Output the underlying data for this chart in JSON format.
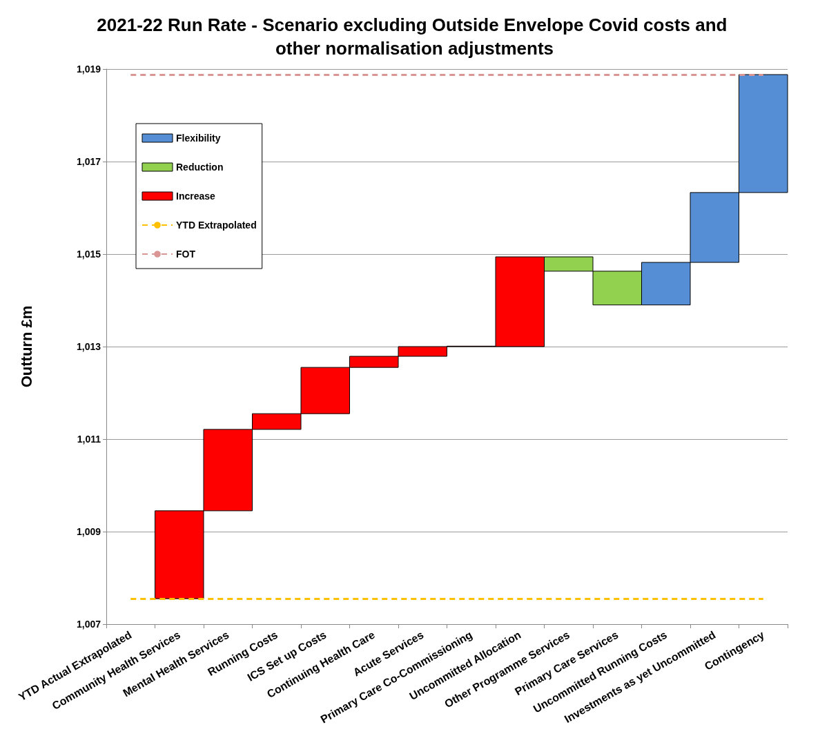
{
  "chart_data": {
    "type": "bar",
    "title": "2021-22 Run Rate - Scenario excluding Outside Envelope Covid costs and other normalisation adjustments",
    "ylabel": "Outturn £m",
    "categories": [
      "YTD Actual Extrapolated",
      "Community Health Services",
      "Mental Health Services",
      "Running Costs",
      "ICS Set up Costs",
      "Continuing Health Care",
      "Acute Services",
      "Primary Care Co-Commissioning",
      "Uncommitted Allocation",
      "Other Programme Services",
      "Primary Care Services",
      "Uncommitted Running Costs",
      "Investments as yet Uncommitted",
      "Contingency"
    ],
    "series": [
      {
        "name": "Flexibility",
        "color": "#558ed5",
        "base": [
          null,
          null,
          null,
          null,
          null,
          null,
          null,
          null,
          null,
          null,
          null,
          1013.9,
          1014.82,
          1016.33
        ],
        "values": [
          null,
          null,
          null,
          null,
          null,
          null,
          null,
          null,
          null,
          null,
          null,
          0.92,
          1.51,
          2.55
        ]
      },
      {
        "name": "Reduction",
        "color": "#92d050",
        "base": [
          null,
          null,
          null,
          null,
          null,
          null,
          null,
          null,
          null,
          1014.94,
          1014.63,
          null,
          null,
          null
        ],
        "values": [
          null,
          null,
          null,
          null,
          null,
          null,
          null,
          null,
          null,
          -0.31,
          -0.73,
          null,
          null,
          null
        ]
      },
      {
        "name": "Increase",
        "color": "#ff0000",
        "base": [
          null,
          1007.55,
          1009.45,
          1011.21,
          1011.55,
          1012.55,
          1012.79,
          1013.0,
          1013.0,
          null,
          null,
          null,
          null,
          null
        ],
        "values": [
          null,
          1.9,
          1.76,
          0.34,
          1.0,
          0.24,
          0.21,
          0.01,
          1.94,
          null,
          null,
          null,
          null,
          null
        ]
      }
    ],
    "ref_lines": [
      {
        "axis": "y",
        "value": 1007.55,
        "label": "YTD Extrapolated",
        "color": "#ffc000",
        "line_style": "dashed"
      },
      {
        "axis": "y",
        "value": 1018.88,
        "label": "FOT",
        "color": "#d99694",
        "line_style": "dashed"
      }
    ],
    "ylim": [
      1007,
      1019
    ],
    "yticks": [
      {
        "value": 1007,
        "label": "1,007"
      },
      {
        "value": 1009,
        "label": "1,009"
      },
      {
        "value": 1011,
        "label": "1,011"
      },
      {
        "value": 1013,
        "label": "1,013"
      },
      {
        "value": 1015,
        "label": "1,015"
      },
      {
        "value": 1017,
        "label": "1,017"
      },
      {
        "value": 1019,
        "label": "1,019"
      }
    ],
    "grid": "y",
    "legend": "top left"
  }
}
